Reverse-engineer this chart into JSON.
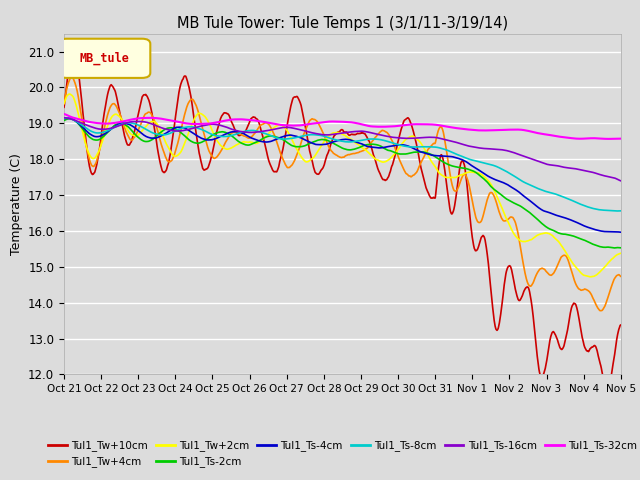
{
  "title": "MB Tule Tower: Tule Temps 1 (3/1/11-3/19/14)",
  "ylabel": "Temperature (C)",
  "ylim": [
    12.0,
    21.5
  ],
  "yticks": [
    12.0,
    13.0,
    14.0,
    15.0,
    16.0,
    17.0,
    18.0,
    19.0,
    20.0,
    21.0
  ],
  "bg_color": "#dcdcdc",
  "legend_label": "MB_tule",
  "series": [
    {
      "label": "Tul1_Tw+10cm",
      "color": "#cc0000"
    },
    {
      "label": "Tul1_Tw+4cm",
      "color": "#ff8800"
    },
    {
      "label": "Tul1_Tw+2cm",
      "color": "#ffff00"
    },
    {
      "label": "Tul1_Ts-2cm",
      "color": "#00cc00"
    },
    {
      "label": "Tul1_Ts-4cm",
      "color": "#0000cc"
    },
    {
      "label": "Tul1_Ts-8cm",
      "color": "#00cccc"
    },
    {
      "label": "Tul1_Ts-16cm",
      "color": "#8800cc"
    },
    {
      "label": "Tul1_Ts-32cm",
      "color": "#ff00ff"
    }
  ],
  "xtick_labels": [
    "Oct 21",
    "Oct 22",
    "Oct 23",
    "Oct 24",
    "Oct 25",
    "Oct 26",
    "Oct 27",
    "Oct 28",
    "Oct 29",
    "Oct 30",
    "Oct 31",
    "Nov 1",
    "Nov 2",
    "Nov 3",
    "Nov 4",
    "Nov 5"
  ],
  "n_xticks": 16
}
